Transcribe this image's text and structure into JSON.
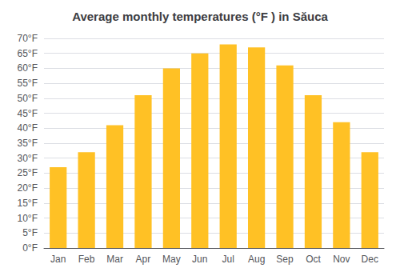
{
  "chart_data": {
    "type": "bar",
    "title": "Average monthly temperatures (°F ) in Săuca",
    "categories": [
      "Jan",
      "Feb",
      "Mar",
      "Apr",
      "May",
      "Jun",
      "Jul",
      "Aug",
      "Sep",
      "Oct",
      "Nov",
      "Dec"
    ],
    "values": [
      27,
      32,
      41,
      51,
      60,
      65,
      68,
      67,
      61,
      51,
      42,
      32
    ],
    "color": "#FFC125",
    "ylim": [
      0,
      70
    ],
    "yticks": [
      {
        "value": 0,
        "label": "0°F"
      },
      {
        "value": 5,
        "label": "5°F"
      },
      {
        "value": 10,
        "label": "10°F"
      },
      {
        "value": 15,
        "label": "15°F"
      },
      {
        "value": 20,
        "label": "20°F"
      },
      {
        "value": 25,
        "label": "25°F"
      },
      {
        "value": 30,
        "label": "30°F"
      },
      {
        "value": 35,
        "label": "35°F"
      },
      {
        "value": 40,
        "label": "40°F"
      },
      {
        "value": 45,
        "label": "45°F"
      },
      {
        "value": 50,
        "label": "50°F"
      },
      {
        "value": 55,
        "label": "55°F"
      },
      {
        "value": 60,
        "label": "60°F"
      },
      {
        "value": 65,
        "label": "65°F"
      },
      {
        "value": 70,
        "label": "70°F"
      }
    ],
    "grid": true
  }
}
